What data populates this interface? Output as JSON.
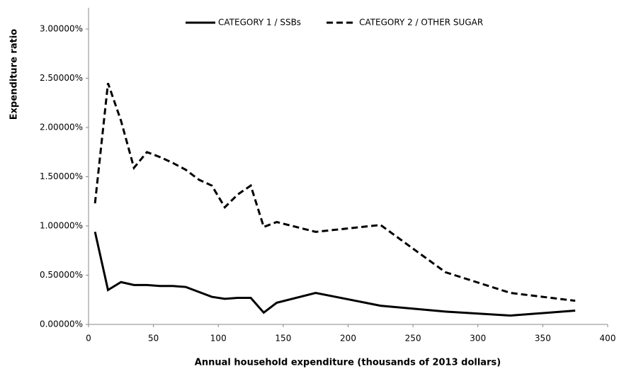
{
  "chart_data": {
    "type": "line",
    "x_label": "Annual household expenditure (thousands of 2013 dollars)",
    "y_label": "Expenditure ratio",
    "x": [
      5,
      15,
      25,
      35,
      45,
      55,
      65,
      75,
      85,
      95,
      105,
      115,
      125,
      135,
      145,
      175,
      225,
      275,
      325,
      375
    ],
    "series": [
      {
        "name": "CATEGORY 1 / SSBs",
        "color": "#000000",
        "style": "solid",
        "values": [
          0.94,
          0.35,
          0.43,
          0.4,
          0.4,
          0.39,
          0.39,
          0.38,
          0.33,
          0.28,
          0.26,
          0.27,
          0.27,
          0.12,
          0.22,
          0.32,
          0.19,
          0.13,
          0.09,
          0.14
        ]
      },
      {
        "name": "CATEGORY 2 / OTHER SUGAR",
        "color": "#000000",
        "style": "dashed",
        "values": [
          1.23,
          2.45,
          2.07,
          1.59,
          1.75,
          1.7,
          1.64,
          1.57,
          1.47,
          1.41,
          1.19,
          1.32,
          1.41,
          0.99,
          1.04,
          0.94,
          1.01,
          0.53,
          0.32,
          0.24
        ]
      }
    ],
    "xlim": [
      0,
      400
    ],
    "xticks": [
      0,
      50,
      100,
      150,
      200,
      250,
      300,
      350,
      400
    ],
    "ylim": [
      0,
      3
    ],
    "yticks": [
      {
        "value": 0,
        "label": "0.00000%"
      },
      {
        "value": 0.5,
        "label": "0.50000%"
      },
      {
        "value": 1,
        "label": "1.00000%"
      },
      {
        "value": 1.5,
        "label": "1.50000%"
      },
      {
        "value": 2,
        "label": "2.00000%"
      },
      {
        "value": 2.5,
        "label": "2.50000%"
      },
      {
        "value": 3,
        "label": "3.00000%"
      }
    ],
    "grid": false,
    "legend": "top"
  }
}
